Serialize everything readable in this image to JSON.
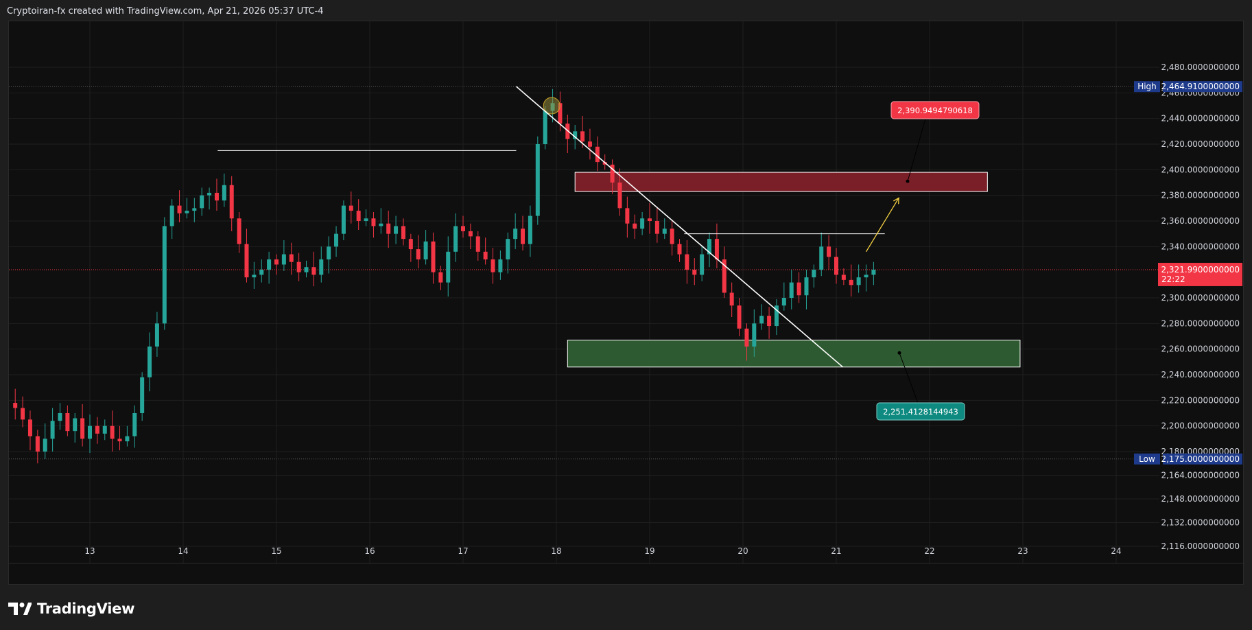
{
  "header": {
    "caption": "Cryptoiran-fx created with TradingView.com, Apr 21, 2026 05:37 UTC-4"
  },
  "brand": {
    "label": "TradingView",
    "icon": "tradingview-logo-icon"
  },
  "colors": {
    "background": "#0f0f0f",
    "page": "#1e1e1e",
    "up": "#26a69a",
    "down": "#f23645",
    "grid": "#1f1f1f",
    "axis_text": "#d1d4dc",
    "tag_blue": "#1e3a8a",
    "resistance_zone": "#7a1f28",
    "support_zone": "#2d5a30",
    "arrow": "#f5d142"
  },
  "chart_data": {
    "type": "candlestick",
    "title": "",
    "xlabel": "",
    "ylabel": "",
    "x_ticks": [
      "13",
      "14",
      "15",
      "16",
      "17",
      "18",
      "19",
      "20",
      "21",
      "22",
      "23",
      "24"
    ],
    "y_ticks": [
      "2,480.0000000000",
      "2,460.0000000000",
      "2,440.0000000000",
      "2,420.0000000000",
      "2,400.0000000000",
      "2,380.0000000000",
      "2,360.0000000000",
      "2,340.0000000000",
      "2,300.0000000000",
      "2,280.0000000000",
      "2,260.0000000000",
      "2,240.0000000000",
      "2,220.0000000000",
      "2,200.0000000000",
      "2,180.0000000000",
      "2,164.0000000000",
      "2,148.0000000000",
      "2,132.0000000000",
      "2,116.0000000000"
    ],
    "y_ticks_values": [
      2480,
      2460,
      2440,
      2420,
      2400,
      2380,
      2360,
      2340,
      2300,
      2280,
      2260,
      2240,
      2220,
      2200,
      2180,
      2164,
      2148,
      2132,
      2116
    ],
    "x_range": [
      12.12,
      24.45
    ],
    "high": {
      "label": "High",
      "value": "2,464.9100000000",
      "num": 2464.91
    },
    "low": {
      "label": "Low",
      "value": "2,175.0000000000",
      "num": 2175.0
    },
    "current": {
      "value": "2,321.9900000000",
      "num": 2321.99,
      "countdown": "22:22"
    },
    "closes": [
      [
        12.12,
        2218
      ],
      [
        12.2,
        2214
      ],
      [
        12.28,
        2205
      ],
      [
        12.36,
        2192
      ],
      [
        12.44,
        2180
      ],
      [
        12.52,
        2190
      ],
      [
        12.6,
        2204
      ],
      [
        12.68,
        2210
      ],
      [
        12.76,
        2196
      ],
      [
        12.84,
        2206
      ],
      [
        12.92,
        2190
      ],
      [
        13.0,
        2200
      ],
      [
        13.08,
        2194
      ],
      [
        13.16,
        2200
      ],
      [
        13.24,
        2190
      ],
      [
        13.32,
        2188
      ],
      [
        13.4,
        2192
      ],
      [
        13.48,
        2210
      ],
      [
        13.56,
        2238
      ],
      [
        13.64,
        2262
      ],
      [
        13.72,
        2280
      ],
      [
        13.8,
        2356
      ],
      [
        13.88,
        2372
      ],
      [
        13.96,
        2366
      ],
      [
        14.04,
        2368
      ],
      [
        14.12,
        2370
      ],
      [
        14.2,
        2380
      ],
      [
        14.28,
        2382
      ],
      [
        14.36,
        2376
      ],
      [
        14.44,
        2388
      ],
      [
        14.52,
        2362
      ],
      [
        14.6,
        2342
      ],
      [
        14.68,
        2316
      ],
      [
        14.76,
        2318
      ],
      [
        14.84,
        2322
      ],
      [
        14.92,
        2330
      ],
      [
        15.0,
        2326
      ],
      [
        15.08,
        2334
      ],
      [
        15.16,
        2328
      ],
      [
        15.24,
        2320
      ],
      [
        15.32,
        2324
      ],
      [
        15.4,
        2318
      ],
      [
        15.48,
        2330
      ],
      [
        15.56,
        2340
      ],
      [
        15.64,
        2350
      ],
      [
        15.72,
        2372
      ],
      [
        15.8,
        2368
      ],
      [
        15.88,
        2360
      ],
      [
        15.96,
        2362
      ],
      [
        16.04,
        2356
      ],
      [
        16.12,
        2358
      ],
      [
        16.2,
        2350
      ],
      [
        16.28,
        2356
      ],
      [
        16.36,
        2346
      ],
      [
        16.44,
        2338
      ],
      [
        16.52,
        2330
      ],
      [
        16.6,
        2344
      ],
      [
        16.68,
        2320
      ],
      [
        16.76,
        2312
      ],
      [
        16.84,
        2336
      ],
      [
        16.92,
        2356
      ],
      [
        17.0,
        2352
      ],
      [
        17.08,
        2348
      ],
      [
        17.16,
        2336
      ],
      [
        17.24,
        2330
      ],
      [
        17.32,
        2320
      ],
      [
        17.4,
        2330
      ],
      [
        17.48,
        2346
      ],
      [
        17.56,
        2354
      ],
      [
        17.64,
        2342
      ],
      [
        17.72,
        2364
      ],
      [
        17.8,
        2420
      ],
      [
        17.88,
        2446
      ],
      [
        17.96,
        2452
      ],
      [
        18.04,
        2436
      ],
      [
        18.12,
        2424
      ],
      [
        18.2,
        2430
      ],
      [
        18.28,
        2422
      ],
      [
        18.36,
        2418
      ],
      [
        18.44,
        2406
      ],
      [
        18.52,
        2404
      ],
      [
        18.6,
        2390
      ],
      [
        18.68,
        2370
      ],
      [
        18.76,
        2358
      ],
      [
        18.84,
        2354
      ],
      [
        18.92,
        2362
      ],
      [
        19.0,
        2360
      ],
      [
        19.08,
        2350
      ],
      [
        19.16,
        2354
      ],
      [
        19.24,
        2342
      ],
      [
        19.32,
        2334
      ],
      [
        19.4,
        2322
      ],
      [
        19.48,
        2318
      ],
      [
        19.56,
        2334
      ],
      [
        19.64,
        2346
      ],
      [
        19.72,
        2330
      ],
      [
        19.8,
        2304
      ],
      [
        19.88,
        2294
      ],
      [
        19.96,
        2276
      ],
      [
        20.04,
        2262
      ],
      [
        20.12,
        2280
      ],
      [
        20.2,
        2286
      ],
      [
        20.28,
        2278
      ],
      [
        20.36,
        2294
      ],
      [
        20.44,
        2300
      ],
      [
        20.52,
        2312
      ],
      [
        20.6,
        2302
      ],
      [
        20.68,
        2316
      ],
      [
        20.76,
        2322
      ],
      [
        20.84,
        2340
      ],
      [
        20.92,
        2332
      ],
      [
        21.0,
        2318
      ],
      [
        21.08,
        2314
      ],
      [
        21.16,
        2310
      ],
      [
        21.24,
        2316
      ],
      [
        21.32,
        2318
      ],
      [
        21.4,
        2322
      ]
    ],
    "annotations": [
      {
        "type": "price_label",
        "text": "2,390.9494790618",
        "value": 2390.9494790618
      },
      {
        "type": "price_label",
        "text": "2,251.4128144943",
        "value": 2251.4128144943
      },
      {
        "type": "zone",
        "name": "resistance",
        "from": 2383,
        "to": 2398
      },
      {
        "type": "zone",
        "name": "support",
        "from": 2246,
        "to": 2267
      },
      {
        "type": "trendline",
        "name": "descending-trendline",
        "x1": 17.57,
        "y1": 2465,
        "x2": 21.07,
        "y2": 2246
      },
      {
        "type": "hline",
        "name": "previous-high-line",
        "x1": 14.37,
        "x2": 17.57,
        "y": 2415
      },
      {
        "type": "hline",
        "name": "break-level-line",
        "x1": 19.37,
        "x2": 21.52,
        "y": 2350
      },
      {
        "type": "arrow",
        "name": "projection-arrow",
        "x1": 21.32,
        "y1": 2336,
        "x2": 21.67,
        "y2": 2378
      }
    ],
    "grid": true
  }
}
